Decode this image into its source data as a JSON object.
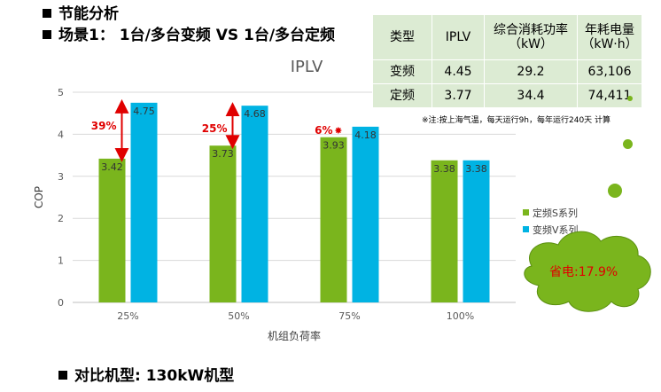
{
  "headings": {
    "line1": "节能分析",
    "line2": "场景1： 1台/多台变频 VS 1台/多台定频",
    "line3": "对比机型: 130kW机型"
  },
  "table": {
    "headers": [
      "类型",
      "IPLV",
      "综合消耗功率（kW）",
      "年耗电量（kW·h）"
    ],
    "rows": [
      [
        "变频",
        "4.45",
        "29.2",
        "63,106"
      ],
      [
        "定频",
        "3.77",
        "34.4",
        "74,411"
      ]
    ]
  },
  "note": "※注:按上海气温，每天运行9h，每年运行240天 计算",
  "saving": {
    "label": "省电:",
    "value": "17.9%"
  },
  "chart_data": {
    "type": "bar",
    "title": "IPLV",
    "xlabel": "机组负荷率",
    "ylabel": "COP",
    "ylim": [
      0,
      5
    ],
    "yticks": [
      0,
      1,
      2,
      3,
      4,
      5
    ],
    "categories": [
      "25%",
      "50%",
      "75%",
      "100%"
    ],
    "series": [
      {
        "name": "定频S系列",
        "color": "#7ab51d",
        "values": [
          3.42,
          3.73,
          3.93,
          3.38
        ]
      },
      {
        "name": "变频V系列",
        "color": "#00b3e3",
        "values": [
          4.75,
          4.68,
          4.18,
          3.38
        ]
      }
    ],
    "annotations": [
      "39%",
      "25%",
      "6%"
    ],
    "legend_position": "right",
    "grid": true,
    "annotation_color": "#e00000"
  }
}
